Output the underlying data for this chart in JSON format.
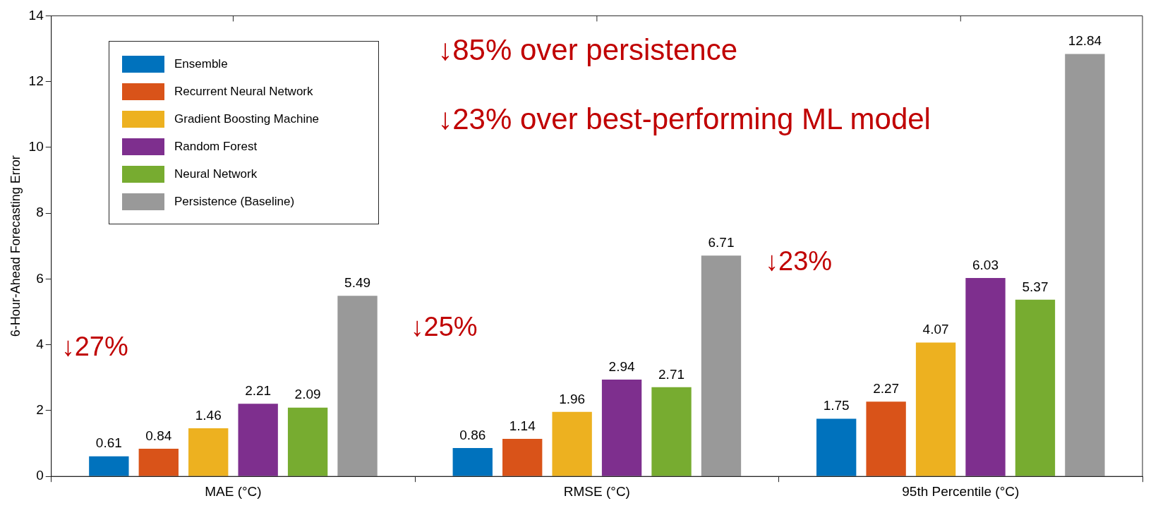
{
  "chart_data": {
    "type": "bar",
    "ylabel": "6-Hour-Ahead Forecasting Error",
    "categories": [
      "MAE (°C)",
      "RMSE (°C)",
      "95th Percentile (°C)"
    ],
    "series": [
      {
        "name": "Ensemble",
        "color": "#0072bd",
        "values": [
          0.61,
          0.86,
          1.75
        ]
      },
      {
        "name": "Recurrent Neural Network",
        "color": "#d95319",
        "values": [
          0.84,
          1.14,
          2.27
        ]
      },
      {
        "name": "Gradient Boosting Machine",
        "color": "#edb120",
        "values": [
          1.46,
          1.96,
          4.07
        ]
      },
      {
        "name": "Random Forest",
        "color": "#7e2f8e",
        "values": [
          2.21,
          2.94,
          6.03
        ]
      },
      {
        "name": "Neural Network",
        "color": "#77ac30",
        "values": [
          2.09,
          2.71,
          5.37
        ]
      },
      {
        "name": "Persistence (Baseline)",
        "color": "#999999",
        "values": [
          5.49,
          6.71,
          12.84
        ]
      }
    ],
    "ylim": [
      0,
      14
    ],
    "yticks": [
      0,
      2,
      4,
      6,
      8,
      10,
      12,
      14
    ],
    "grid": false,
    "legend": "top left",
    "data_labels": true,
    "annotations": [
      "↓85% over persistence",
      "↓23% over best-performing ML model",
      "↓27%",
      "↓25%",
      "↓23%"
    ]
  }
}
